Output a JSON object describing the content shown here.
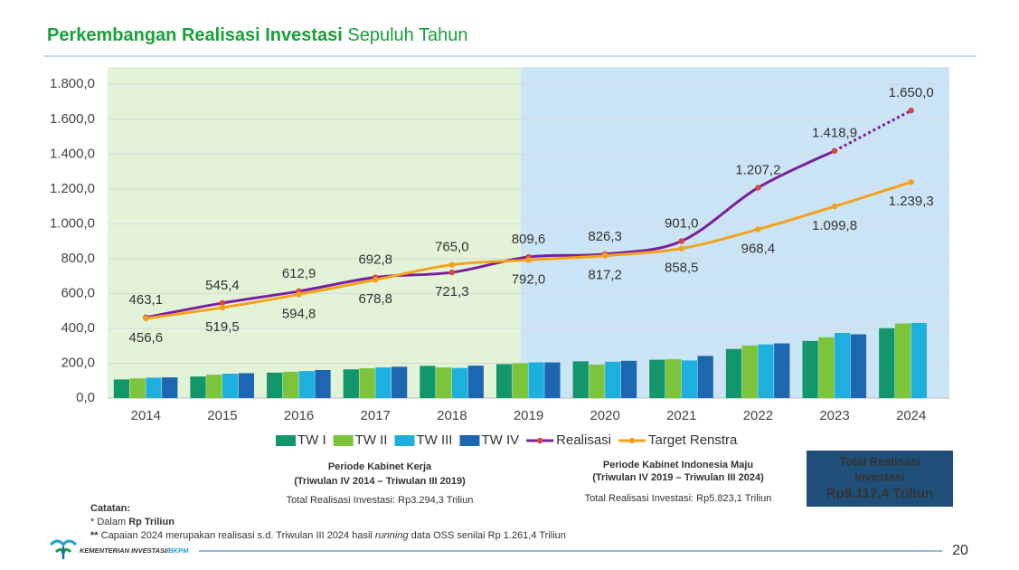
{
  "slide": {
    "title_bold": "Perkembangan Realisasi Investasi",
    "title_rest": "Sepuluh Tahun",
    "periods": [
      {
        "title": "Periode Kabinet Kerja",
        "range": "(Triwulan IV 2014 – Triwulan III 2019)",
        "total": "Total Realisasi Investasi: Rp3.294,3 Triliun"
      },
      {
        "title": "Periode Kabinet Indonesia Maju",
        "range": "(Triwulan IV 2019 – Triwulan III 2024)",
        "total": "Total Realisasi Investasi: Rp5.823,1 Triliun"
      }
    ],
    "total_box": {
      "line1": "Total Realisasi",
      "line2": "Investasi",
      "amount": "Rp9.117,4 Triliun"
    },
    "notes": {
      "heading": "Catatan:",
      "line1": [
        "*",
        " Dalam ",
        "Rp Triliun"
      ],
      "line2": [
        "**",
        " Capaian 2024 merupakan realisasi s.d. Triwulan III 2024 hasil ",
        "running",
        " data OSS senilai Rp 1.261,4 Triliun"
      ]
    },
    "logo": [
      "KEMENTERIAN INVESTASI/",
      "BKPM"
    ],
    "page_number": "20"
  },
  "chart_data": {
    "type": "bar_line",
    "categories": [
      "2014",
      "2015",
      "2016",
      "2017",
      "2018",
      "2019",
      "2020",
      "2021",
      "2022",
      "2023",
      "2024"
    ],
    "series": [
      {
        "name": "TW I",
        "kind": "bar",
        "color": "#12966b",
        "values": [
          107,
          124,
          146,
          165,
          185,
          195,
          211,
          220,
          282,
          328,
          401
        ]
      },
      {
        "name": "TW II",
        "kind": "bar",
        "color": "#7cc43a",
        "values": [
          113,
          134,
          151,
          171,
          176,
          200,
          192,
          223,
          302,
          349,
          428
        ]
      },
      {
        "name": "TW III",
        "kind": "bar",
        "color": "#1db0df",
        "values": [
          117,
          140,
          155,
          176,
          173,
          205,
          209,
          216,
          308,
          374,
          431
        ]
      },
      {
        "name": "TW IV",
        "kind": "bar",
        "color": "#1d67b0",
        "values": [
          119,
          143,
          161,
          180,
          186,
          205,
          214,
          242,
          314,
          366,
          null
        ]
      },
      {
        "name": "Realisasi",
        "kind": "line",
        "color": "#7a1fa0",
        "marker_color": "#d8453a",
        "dashed_last_segment": true,
        "values": [
          463.1,
          545.4,
          612.9,
          692.8,
          721.3,
          809.6,
          826.3,
          901.0,
          1207.2,
          1418.9,
          1650.0
        ],
        "value_labels": [
          "463,1",
          "545,4",
          "612,9",
          "692,8",
          "721,3",
          "809,6",
          "826,3",
          "901,0",
          "1.207,2",
          "1.418,9",
          "1.650,0"
        ]
      },
      {
        "name": "Target Renstra",
        "kind": "line",
        "color": "#f4a21c",
        "marker_color": "#f4a21c",
        "values": [
          456.6,
          519.5,
          594.8,
          678.8,
          765.0,
          792.0,
          817.2,
          858.5,
          968.4,
          1099.8,
          1239.3
        ],
        "value_labels": [
          "456,6",
          "519,5",
          "594,8",
          "678,8",
          "765,0",
          "792,0",
          "817,2",
          "858,5",
          "968,4",
          "1.099,8",
          "1.239,3"
        ]
      }
    ],
    "ylim": [
      0,
      1900
    ],
    "yticks": [
      {
        "value": 0,
        "label": "0,0"
      },
      {
        "value": 200,
        "label": "200,0"
      },
      {
        "value": 400,
        "label": "400,0"
      },
      {
        "value": 600,
        "label": "600,0"
      },
      {
        "value": 800,
        "label": "800,0"
      },
      {
        "value": 1000,
        "label": "1.000,0"
      },
      {
        "value": 1200,
        "label": "1.200,0"
      },
      {
        "value": 1400,
        "label": "1.400,0"
      },
      {
        "value": 1600,
        "label": "1.600,0"
      },
      {
        "value": 1800,
        "label": "1.800,0"
      }
    ],
    "grid": true
  }
}
